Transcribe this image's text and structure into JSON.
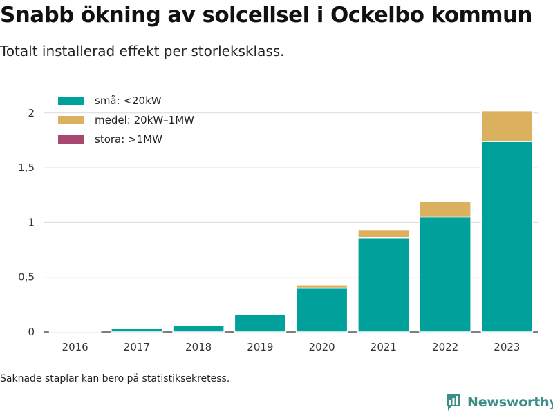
{
  "title": "Snabb ökning av solcellsel i Ockelbo kommun",
  "subtitle": "Totalt installerad effekt per storleksklass.",
  "footnote": "Saknade staplar kan bero på statistiksekretess.",
  "brand": {
    "name": "Newsworthy",
    "icon": "newsworthy-logo-icon",
    "color": "#3c8f86"
  },
  "chart_data": {
    "type": "bar",
    "stacked": true,
    "categories": [
      "2016",
      "2017",
      "2018",
      "2019",
      "2020",
      "2021",
      "2022",
      "2023"
    ],
    "series": [
      {
        "name": "små: <20kW",
        "color": "#00a19a",
        "values": [
          0.005,
          0.03,
          0.06,
          0.16,
          0.4,
          0.86,
          1.05,
          1.74
        ]
      },
      {
        "name": "medel: 20kW–1MW",
        "color": "#dbb05e",
        "values": [
          0,
          0,
          0,
          0,
          0.03,
          0.07,
          0.14,
          0.28
        ]
      },
      {
        "name": "stora: >1MW",
        "color": "#a8476f",
        "values": [
          0,
          0,
          0,
          0,
          0,
          0,
          0,
          0
        ]
      }
    ],
    "ylim": [
      0,
      2.15
    ],
    "yticks": [
      0,
      0.5,
      1,
      1.5,
      2
    ],
    "ytick_labels": [
      "0",
      "0,5",
      "1",
      "1,5",
      "2"
    ],
    "xlabel": "",
    "ylabel": "",
    "grid": true,
    "legend_position": "top-left"
  }
}
